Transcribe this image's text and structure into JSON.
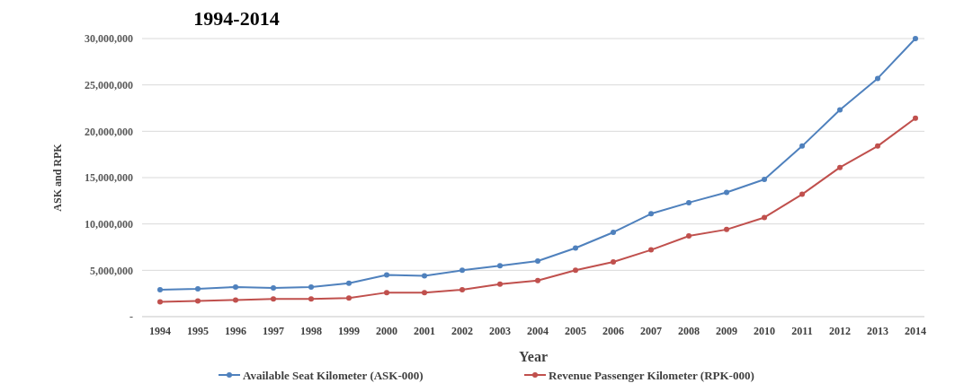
{
  "chart_data": {
    "type": "line",
    "title": "1994-2014",
    "xlabel": "Year",
    "ylabel": "ASK and RPK",
    "categories": [
      "1994",
      "1995",
      "1996",
      "1997",
      "1998",
      "1999",
      "2000",
      "2001",
      "2002",
      "2003",
      "2004",
      "2005",
      "2006",
      "2007",
      "2008",
      "2009",
      "2010",
      "2011",
      "2012",
      "2013",
      "2014"
    ],
    "series": [
      {
        "name": "Available Seat Kilometer (ASK-000)",
        "color": "#4f81bd",
        "values": [
          2900000,
          3000000,
          3200000,
          3100000,
          3200000,
          3600000,
          4500000,
          4400000,
          5000000,
          5500000,
          6000000,
          7400000,
          9100000,
          11100000,
          12300000,
          13400000,
          14800000,
          18400000,
          22300000,
          25700000,
          30000000
        ]
      },
      {
        "name": "Revenue Passenger Kilometer (RPK-000)",
        "color": "#c0504d",
        "values": [
          1600000,
          1700000,
          1800000,
          1900000,
          1900000,
          2000000,
          2600000,
          2600000,
          2900000,
          3500000,
          3900000,
          5000000,
          5900000,
          7200000,
          8700000,
          9400000,
          10700000,
          13200000,
          16100000,
          18400000,
          21400000
        ]
      }
    ],
    "ylim": [
      0,
      30000000
    ],
    "yticks": [
      {
        "value": 0,
        "label": "-"
      },
      {
        "value": 5000000,
        "label": "5,000,000"
      },
      {
        "value": 10000000,
        "label": "10,000,000"
      },
      {
        "value": 15000000,
        "label": "15,000,000"
      },
      {
        "value": 20000000,
        "label": "20,000,000"
      },
      {
        "value": 25000000,
        "label": "25,000,000"
      },
      {
        "value": 30000000,
        "label": "30,000,000"
      }
    ],
    "grid": "y",
    "legend": "bottom",
    "marker": "circle",
    "line_style": "solid"
  }
}
